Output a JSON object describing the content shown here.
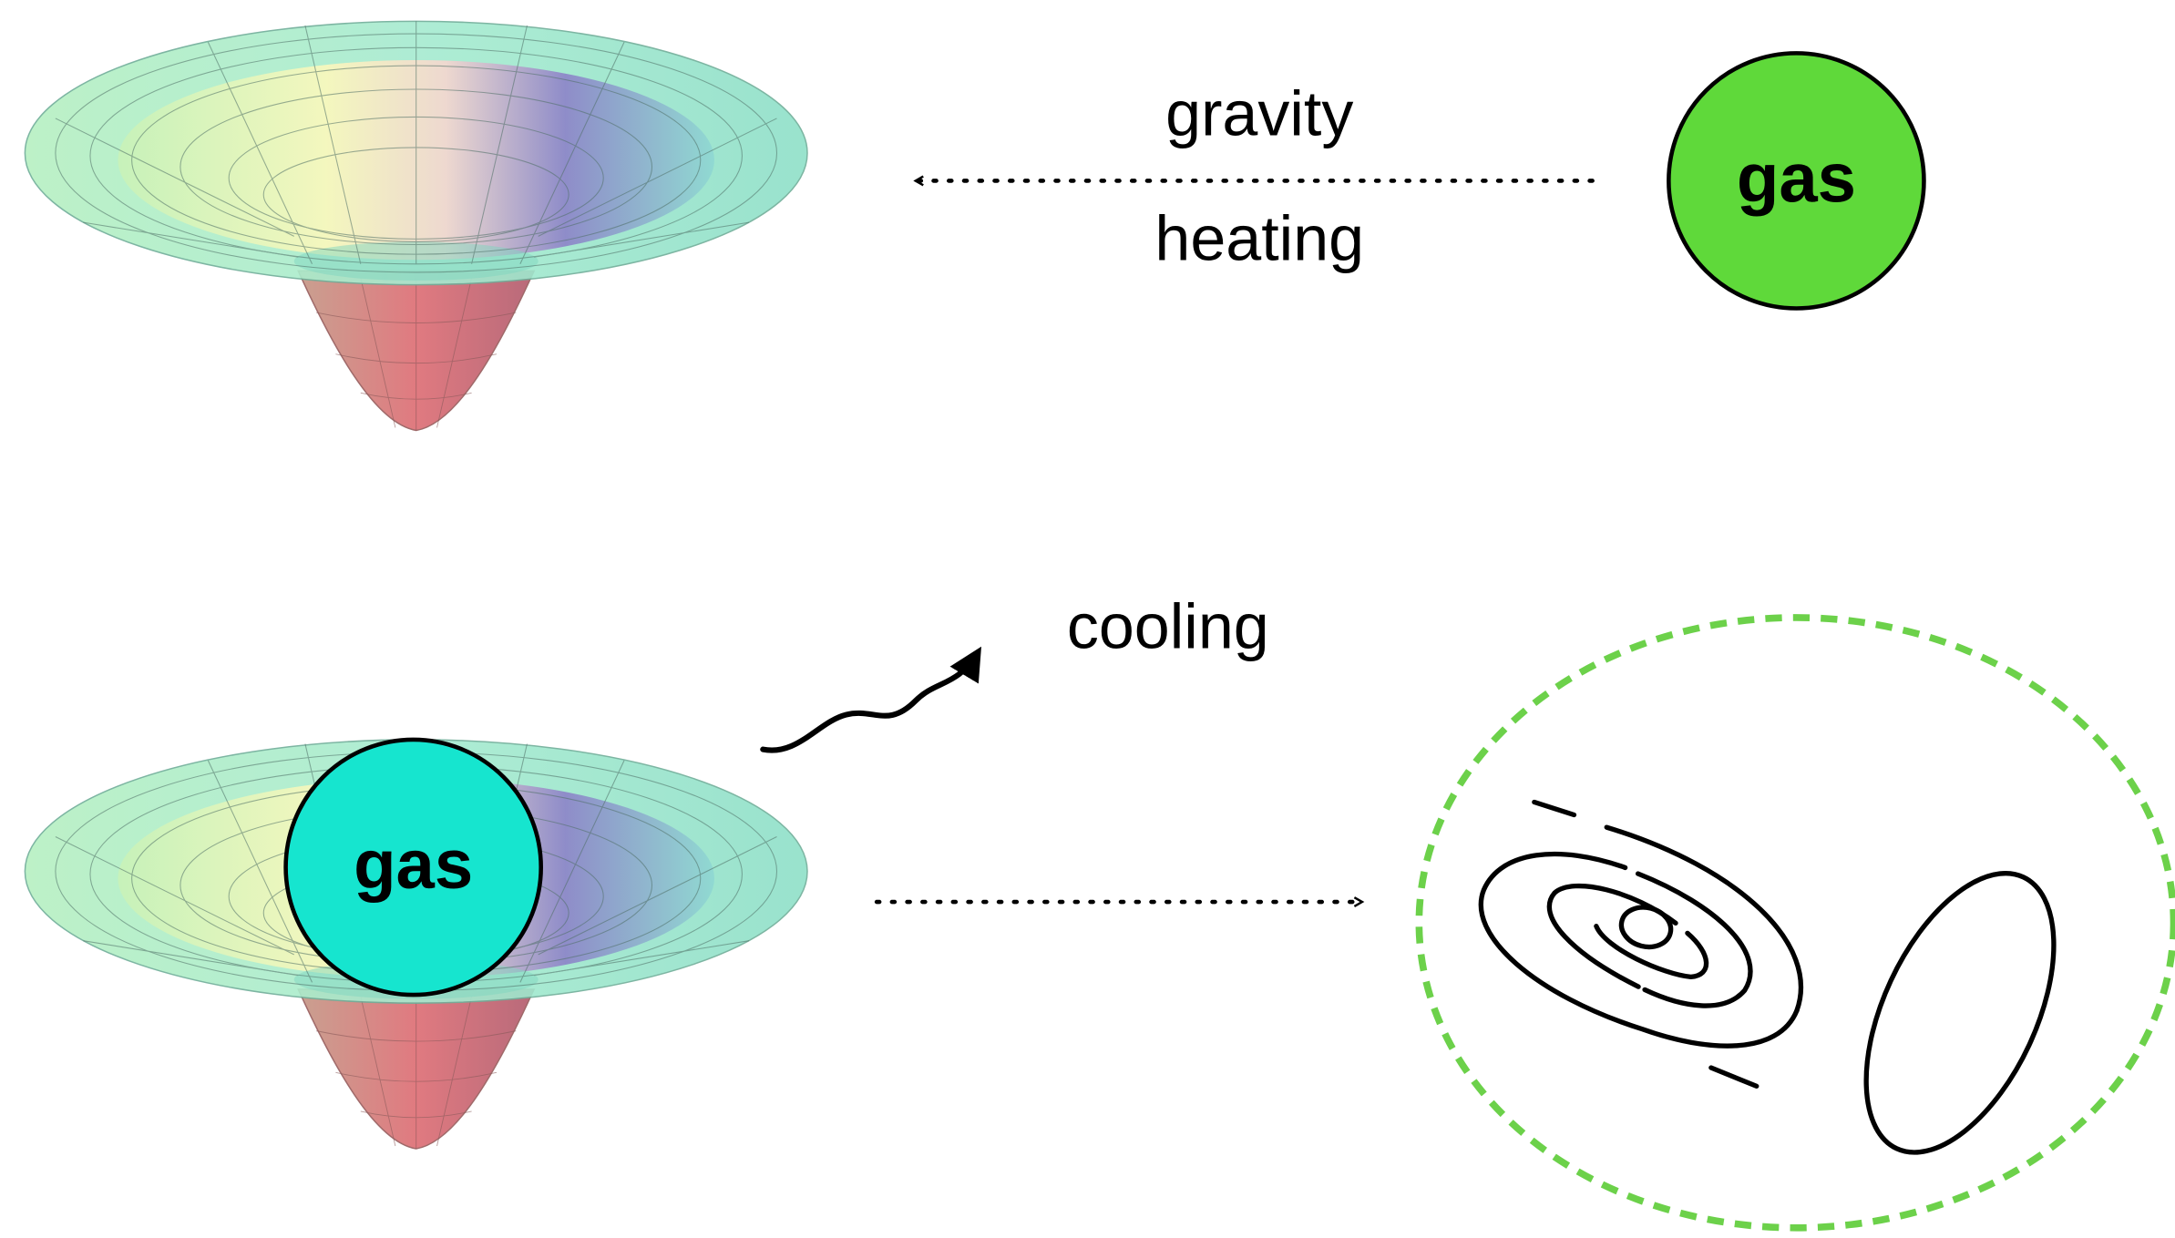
{
  "top": {
    "gas": "gas",
    "label_above": "gravity",
    "label_below": "heating"
  },
  "bottom": {
    "gas": "gas",
    "label": "cooling"
  }
}
